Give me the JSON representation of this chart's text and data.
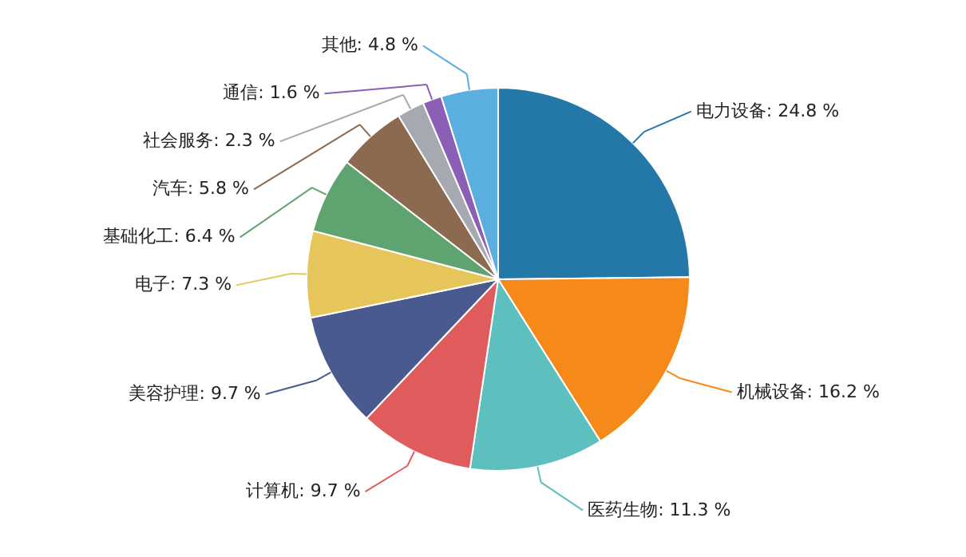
{
  "chart_data": {
    "type": "pie",
    "categories": [
      "电力设备",
      "机械设备",
      "医药生物",
      "计算机",
      "美容护理",
      "电子",
      "基础化工",
      "汽车",
      "社会服务",
      "通信",
      "其他"
    ],
    "values": [
      24.8,
      16.2,
      11.3,
      9.7,
      9.7,
      7.3,
      6.4,
      5.8,
      2.3,
      1.6,
      4.8
    ],
    "value_labels": [
      "24.8 %",
      "16.2 %",
      "11.3 %",
      "9.7 %",
      "9.7 %",
      "7.3 %",
      "6.4 %",
      "5.8 %",
      "2.3 %",
      "1.6 %",
      "4.8 %"
    ],
    "colors": [
      "#2378a8",
      "#f5891a",
      "#5ebfbf",
      "#e05c5c",
      "#4a5a8f",
      "#e6c65a",
      "#5fa470",
      "#8c6a50",
      "#a6a9b1",
      "#8b5fb5",
      "#5aaee0"
    ]
  }
}
